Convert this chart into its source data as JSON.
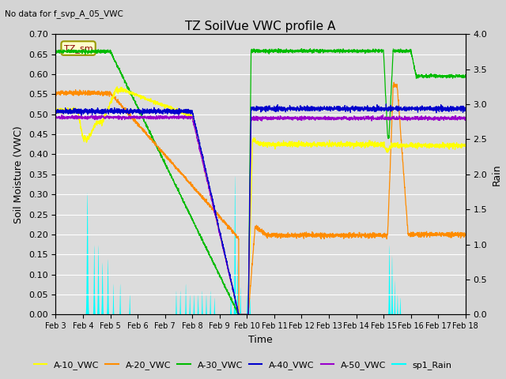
{
  "title": "TZ SoilVue VWC profile A",
  "no_data_text": "No data for f_svp_A_05_VWC",
  "ylabel_left": "Soil Moisture (VWC)",
  "ylabel_right": "Rain",
  "xlabel": "Time",
  "ylim_left": [
    0.0,
    0.7
  ],
  "ylim_right": [
    0.0,
    4.0
  ],
  "fig_bg": "#d4d4d4",
  "plot_bg": "#dcdcdc",
  "grid_color": "#ffffff",
  "series_colors": {
    "A10": "#ffff00",
    "A20": "#ff8c00",
    "A30": "#00bb00",
    "A40": "#0000cc",
    "A50": "#9900cc",
    "Rain": "#00ffff"
  },
  "series_labels": {
    "A10": "A-10_VWC",
    "A20": "A-20_VWC",
    "A30": "A-30_VWC",
    "A40": "A-40_VWC",
    "A50": "A-50_VWC",
    "Rain": "sp1_Rain"
  },
  "xtick_labels": [
    "Feb 3",
    "Feb 4",
    "Feb 5",
    "Feb 6",
    "Feb 7",
    "Feb 8",
    "Feb 9",
    "Feb 10",
    "Feb 11",
    "Feb 12",
    "Feb 13",
    "Feb 14",
    "Feb 15",
    "Feb 16",
    "Feb 17",
    "Feb 18"
  ],
  "ytick_left": [
    0.0,
    0.05,
    0.1,
    0.15,
    0.2,
    0.25,
    0.3,
    0.35,
    0.4,
    0.45,
    0.5,
    0.55,
    0.6,
    0.65,
    0.7
  ],
  "ytick_right": [
    0.0,
    0.5,
    1.0,
    1.5,
    2.0,
    2.5,
    3.0,
    3.5,
    4.0
  ],
  "tzlabel": "TZ_sm"
}
